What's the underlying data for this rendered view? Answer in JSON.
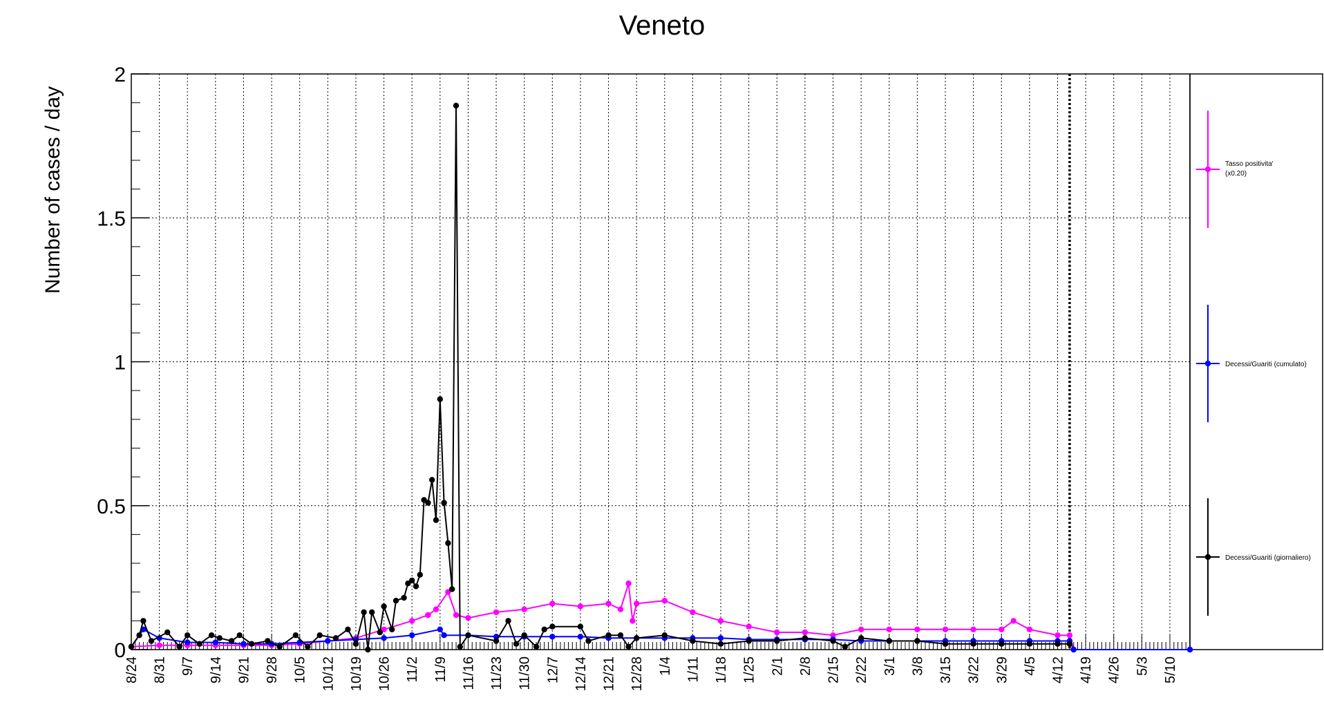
{
  "chart_data": {
    "type": "line",
    "title": "Veneto",
    "xlabel": "",
    "ylabel": "Number of cases / day",
    "ylim": [
      0,
      2
    ],
    "y_ticks": [
      "0",
      "0.5",
      "1",
      "1.5",
      "2"
    ],
    "x_start": "2020-08-24",
    "x_end": "2021-05-15",
    "x_tick_labels": [
      "8/24",
      "8/31",
      "9/7",
      "9/14",
      "9/21",
      "9/28",
      "10/5",
      "10/12",
      "10/19",
      "10/26",
      "11/2",
      "11/9",
      "11/16",
      "11/23",
      "11/30",
      "12/7",
      "12/14",
      "12/21",
      "12/28",
      "1/4",
      "1/11",
      "1/18",
      "1/25",
      "2/1",
      "2/8",
      "2/15",
      "2/22",
      "3/1",
      "3/8",
      "3/15",
      "3/22",
      "3/29",
      "4/5",
      "4/12",
      "4/19",
      "4/26",
      "5/3",
      "5/10"
    ],
    "marker_line_date": "2021-04-15",
    "grid": true,
    "legend_position": "right",
    "colors": {
      "positivity": "#ff00ff",
      "cumulative": "#0000ff",
      "daily": "#000000"
    },
    "series": [
      {
        "name": "Tasso positivita' (x0.20)",
        "color": "#ff00ff",
        "points": [
          [
            "2020-08-24",
            0.01
          ],
          [
            "2020-08-31",
            0.015
          ],
          [
            "2020-09-07",
            0.015
          ],
          [
            "2020-09-14",
            0.015
          ],
          [
            "2020-09-21",
            0.015
          ],
          [
            "2020-09-28",
            0.015
          ],
          [
            "2020-10-05",
            0.02
          ],
          [
            "2020-10-12",
            0.03
          ],
          [
            "2020-10-19",
            0.04
          ],
          [
            "2020-10-26",
            0.07
          ],
          [
            "2020-11-02",
            0.1
          ],
          [
            "2020-11-06",
            0.12
          ],
          [
            "2020-11-08",
            0.14
          ],
          [
            "2020-11-11",
            0.2
          ],
          [
            "2020-11-13",
            0.12
          ],
          [
            "2020-11-16",
            0.11
          ],
          [
            "2020-11-23",
            0.13
          ],
          [
            "2020-11-30",
            0.14
          ],
          [
            "2020-12-07",
            0.16
          ],
          [
            "2020-12-14",
            0.15
          ],
          [
            "2020-12-21",
            0.16
          ],
          [
            "2020-12-24",
            0.14
          ],
          [
            "2020-12-26",
            0.23
          ],
          [
            "2020-12-27",
            0.1
          ],
          [
            "2020-12-28",
            0.16
          ],
          [
            "2021-01-04",
            0.17
          ],
          [
            "2021-01-11",
            0.13
          ],
          [
            "2021-01-18",
            0.1
          ],
          [
            "2021-01-25",
            0.08
          ],
          [
            "2021-02-01",
            0.06
          ],
          [
            "2021-02-08",
            0.06
          ],
          [
            "2021-02-15",
            0.05
          ],
          [
            "2021-02-22",
            0.07
          ],
          [
            "2021-03-01",
            0.07
          ],
          [
            "2021-03-08",
            0.07
          ],
          [
            "2021-03-15",
            0.07
          ],
          [
            "2021-03-22",
            0.07
          ],
          [
            "2021-03-29",
            0.07
          ],
          [
            "2021-04-01",
            0.1
          ],
          [
            "2021-04-05",
            0.07
          ],
          [
            "2021-04-12",
            0.05
          ],
          [
            "2021-04-15",
            0.05
          ],
          [
            "2021-04-16",
            0.0
          ],
          [
            "2021-05-15",
            0.0
          ]
        ]
      },
      {
        "name": "Decessi/Guariti (cumulato)",
        "color": "#0000ff",
        "points": [
          [
            "2020-08-24",
            0.01
          ],
          [
            "2020-08-27",
            0.07
          ],
          [
            "2020-08-31",
            0.04
          ],
          [
            "2020-09-07",
            0.025
          ],
          [
            "2020-09-14",
            0.025
          ],
          [
            "2020-09-21",
            0.02
          ],
          [
            "2020-09-28",
            0.02
          ],
          [
            "2020-10-05",
            0.025
          ],
          [
            "2020-10-12",
            0.03
          ],
          [
            "2020-10-19",
            0.035
          ],
          [
            "2020-10-26",
            0.04
          ],
          [
            "2020-11-02",
            0.05
          ],
          [
            "2020-11-09",
            0.07
          ],
          [
            "2020-11-10",
            0.05
          ],
          [
            "2020-11-16",
            0.05
          ],
          [
            "2020-11-23",
            0.045
          ],
          [
            "2020-11-30",
            0.045
          ],
          [
            "2020-12-07",
            0.045
          ],
          [
            "2020-12-14",
            0.045
          ],
          [
            "2020-12-21",
            0.04
          ],
          [
            "2020-12-28",
            0.04
          ],
          [
            "2021-01-04",
            0.04
          ],
          [
            "2021-01-11",
            0.04
          ],
          [
            "2021-01-18",
            0.04
          ],
          [
            "2021-01-25",
            0.035
          ],
          [
            "2021-02-01",
            0.035
          ],
          [
            "2021-02-08",
            0.035
          ],
          [
            "2021-02-15",
            0.035
          ],
          [
            "2021-02-22",
            0.03
          ],
          [
            "2021-03-01",
            0.03
          ],
          [
            "2021-03-08",
            0.03
          ],
          [
            "2021-03-15",
            0.03
          ],
          [
            "2021-03-22",
            0.03
          ],
          [
            "2021-03-29",
            0.03
          ],
          [
            "2021-04-05",
            0.03
          ],
          [
            "2021-04-12",
            0.03
          ],
          [
            "2021-04-15",
            0.03
          ],
          [
            "2021-04-16",
            0.0
          ],
          [
            "2021-05-15",
            0.0
          ]
        ]
      },
      {
        "name": "Decessi/Guariti (giornaliero)",
        "color": "#000000",
        "points": [
          [
            "2020-08-24",
            0.01
          ],
          [
            "2020-08-26",
            0.05
          ],
          [
            "2020-08-27",
            0.1
          ],
          [
            "2020-08-29",
            0.03
          ],
          [
            "2020-09-02",
            0.06
          ],
          [
            "2020-09-05",
            0.01
          ],
          [
            "2020-09-07",
            0.05
          ],
          [
            "2020-09-10",
            0.02
          ],
          [
            "2020-09-13",
            0.05
          ],
          [
            "2020-09-15",
            0.04
          ],
          [
            "2020-09-18",
            0.03
          ],
          [
            "2020-09-20",
            0.05
          ],
          [
            "2020-09-23",
            0.02
          ],
          [
            "2020-09-27",
            0.03
          ],
          [
            "2020-09-30",
            0.01
          ],
          [
            "2020-10-04",
            0.05
          ],
          [
            "2020-10-07",
            0.01
          ],
          [
            "2020-10-10",
            0.05
          ],
          [
            "2020-10-14",
            0.04
          ],
          [
            "2020-10-17",
            0.07
          ],
          [
            "2020-10-19",
            0.02
          ],
          [
            "2020-10-21",
            0.13
          ],
          [
            "2020-10-22",
            0.0
          ],
          [
            "2020-10-23",
            0.13
          ],
          [
            "2020-10-25",
            0.06
          ],
          [
            "2020-10-26",
            0.15
          ],
          [
            "2020-10-28",
            0.07
          ],
          [
            "2020-10-29",
            0.17
          ],
          [
            "2020-10-31",
            0.18
          ],
          [
            "2020-11-01",
            0.23
          ],
          [
            "2020-11-02",
            0.24
          ],
          [
            "2020-11-03",
            0.22
          ],
          [
            "2020-11-04",
            0.26
          ],
          [
            "2020-11-05",
            0.52
          ],
          [
            "2020-11-06",
            0.51
          ],
          [
            "2020-11-07",
            0.59
          ],
          [
            "2020-11-08",
            0.45
          ],
          [
            "2020-11-09",
            0.87
          ],
          [
            "2020-11-10",
            0.51
          ],
          [
            "2020-11-11",
            0.37
          ],
          [
            "2020-11-12",
            0.21
          ],
          [
            "2020-11-13",
            1.89
          ],
          [
            "2020-11-14",
            0.01
          ],
          [
            "2020-11-16",
            0.05
          ],
          [
            "2020-11-23",
            0.03
          ],
          [
            "2020-11-26",
            0.1
          ],
          [
            "2020-11-28",
            0.02
          ],
          [
            "2020-11-30",
            0.05
          ],
          [
            "2020-12-03",
            0.01
          ],
          [
            "2020-12-05",
            0.07
          ],
          [
            "2020-12-07",
            0.08
          ],
          [
            "2020-12-14",
            0.08
          ],
          [
            "2020-12-16",
            0.03
          ],
          [
            "2020-12-21",
            0.05
          ],
          [
            "2020-12-24",
            0.05
          ],
          [
            "2020-12-26",
            0.01
          ],
          [
            "2020-12-28",
            0.04
          ],
          [
            "2021-01-04",
            0.05
          ],
          [
            "2021-01-11",
            0.03
          ],
          [
            "2021-01-18",
            0.02
          ],
          [
            "2021-01-25",
            0.03
          ],
          [
            "2021-02-01",
            0.03
          ],
          [
            "2021-02-08",
            0.04
          ],
          [
            "2021-02-15",
            0.03
          ],
          [
            "2021-02-18",
            0.01
          ],
          [
            "2021-02-22",
            0.04
          ],
          [
            "2021-03-01",
            0.03
          ],
          [
            "2021-03-08",
            0.03
          ],
          [
            "2021-03-15",
            0.02
          ],
          [
            "2021-03-22",
            0.02
          ],
          [
            "2021-03-29",
            0.02
          ],
          [
            "2021-04-05",
            0.02
          ],
          [
            "2021-04-12",
            0.02
          ],
          [
            "2021-04-15",
            0.02
          ]
        ]
      }
    ],
    "legend": [
      {
        "label_lines": [
          "Tasso positivita'",
          "(x0.20)"
        ],
        "color": "#ff00ff"
      },
      {
        "label_lines": [
          "Decessi/Guariti (cumulato)"
        ],
        "color": "#0000ff"
      },
      {
        "label_lines": [
          "Decessi/Guariti (giornaliero)"
        ],
        "color": "#000000"
      }
    ]
  }
}
